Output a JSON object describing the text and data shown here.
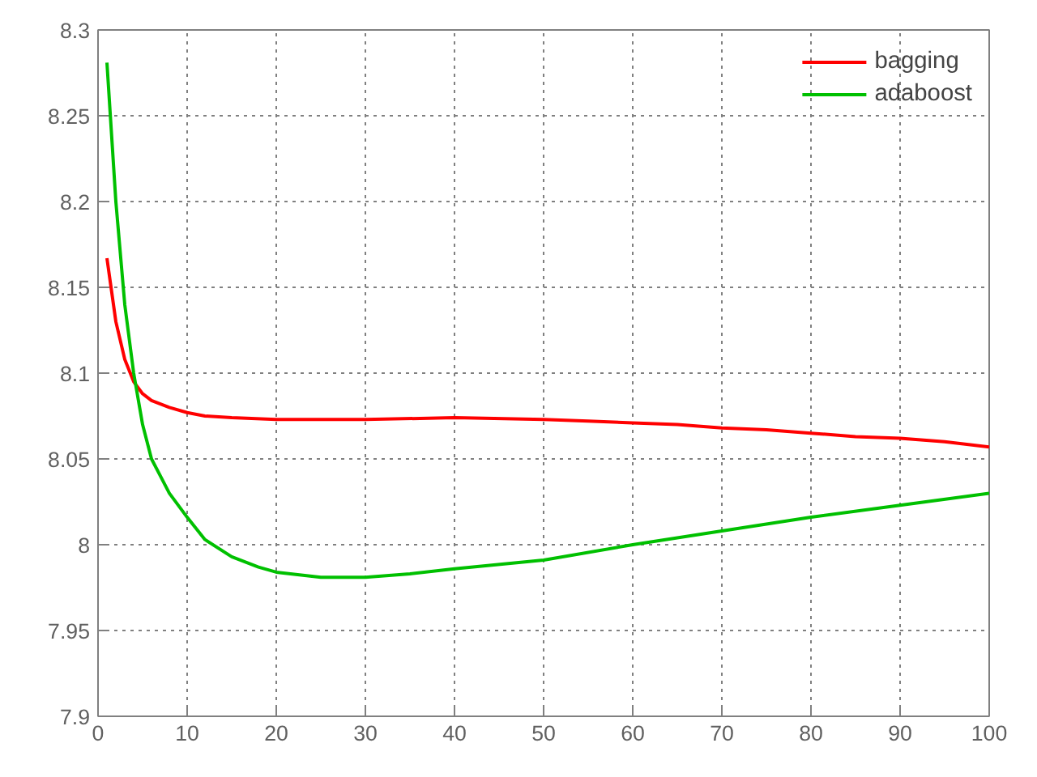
{
  "chart_data": {
    "type": "line",
    "xlim": [
      0,
      100
    ],
    "ylim": [
      7.9,
      8.3
    ],
    "xticks": [
      0,
      10,
      20,
      30,
      40,
      50,
      60,
      70,
      80,
      90,
      100
    ],
    "yticks": [
      7.9,
      7.95,
      8,
      8.05,
      8.1,
      8.15,
      8.2,
      8.25,
      8.3
    ],
    "grid": true,
    "legend": "top right",
    "line_style": "solid",
    "series": [
      {
        "name": "bagging",
        "color": "#ff0000",
        "x": [
          1,
          2,
          3,
          4,
          5,
          6,
          7,
          8,
          10,
          12,
          15,
          20,
          30,
          40,
          50,
          55,
          60,
          65,
          70,
          75,
          80,
          85,
          90,
          95,
          100
        ],
        "values": [
          8.167,
          8.13,
          8.108,
          8.095,
          8.088,
          8.084,
          8.082,
          8.08,
          8.077,
          8.075,
          8.074,
          8.073,
          8.073,
          8.074,
          8.073,
          8.072,
          8.071,
          8.07,
          8.068,
          8.067,
          8.065,
          8.063,
          8.062,
          8.06,
          8.057
        ]
      },
      {
        "name": "adaboost",
        "color": "#00c000",
        "x": [
          1,
          2,
          3,
          4,
          5,
          6,
          7,
          8,
          10,
          12,
          15,
          18,
          20,
          25,
          30,
          35,
          40,
          50,
          60,
          70,
          80,
          90,
          100
        ],
        "values": [
          8.281,
          8.2,
          8.14,
          8.1,
          8.07,
          8.05,
          8.04,
          8.03,
          8.016,
          8.003,
          7.993,
          7.987,
          7.984,
          7.981,
          7.981,
          7.983,
          7.986,
          7.991,
          8.0,
          8.008,
          8.016,
          8.023,
          8.03
        ]
      }
    ]
  }
}
